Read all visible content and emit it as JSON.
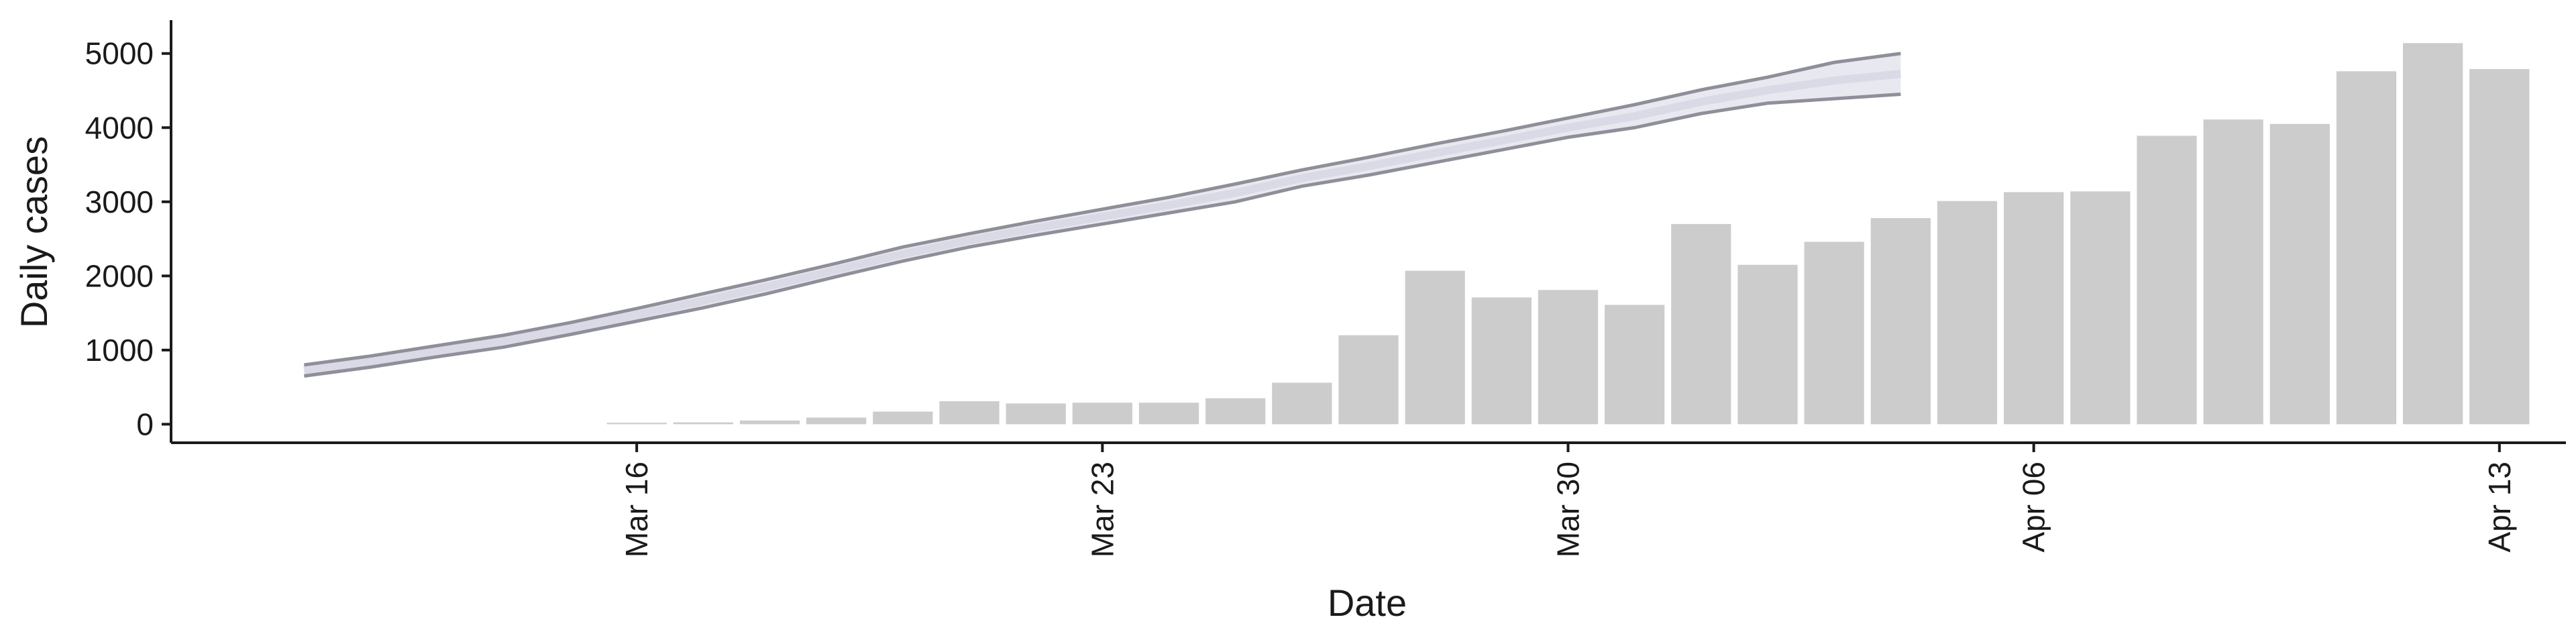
{
  "chart_data": {
    "type": "bar",
    "xlabel": "Date",
    "ylabel": "Daily cases",
    "ylim": [
      -250,
      5450
    ],
    "xlim": [
      "2020-03-09",
      "2020-04-14"
    ],
    "x_ticks": [
      {
        "date": "2020-03-16",
        "label": "Mar 16"
      },
      {
        "date": "2020-03-23",
        "label": "Mar 23"
      },
      {
        "date": "2020-03-30",
        "label": "Mar 30"
      },
      {
        "date": "2020-04-06",
        "label": "Apr 06"
      },
      {
        "date": "2020-04-13",
        "label": "Apr 13"
      }
    ],
    "y_ticks": [
      0,
      1000,
      2000,
      3000,
      4000,
      5000
    ],
    "grid": false,
    "legend": "none",
    "bars": {
      "color": "#cccccc",
      "dates": [
        "2020-03-16",
        "2020-03-17",
        "2020-03-18",
        "2020-03-19",
        "2020-03-20",
        "2020-03-21",
        "2020-03-22",
        "2020-03-23",
        "2020-03-24",
        "2020-03-25",
        "2020-03-26",
        "2020-03-27",
        "2020-03-28",
        "2020-03-29",
        "2020-03-30",
        "2020-03-31",
        "2020-04-01",
        "2020-04-02",
        "2020-04-03",
        "2020-04-04",
        "2020-04-05",
        "2020-04-06",
        "2020-04-07",
        "2020-04-08",
        "2020-04-09",
        "2020-04-10",
        "2020-04-11",
        "2020-04-12",
        "2020-04-13"
      ],
      "values": [
        20,
        25,
        50,
        90,
        170,
        310,
        280,
        290,
        290,
        350,
        560,
        1200,
        2070,
        1710,
        1810,
        1610,
        2700,
        2150,
        2460,
        2780,
        3010,
        3130,
        3140,
        3890,
        4110,
        4050,
        4760,
        5140,
        4790
      ]
    },
    "forecast_band": {
      "line_color": "#8f8f99",
      "fill_color": "#e8e8f0",
      "dates": [
        "2020-03-11",
        "2020-03-12",
        "2020-03-13",
        "2020-03-14",
        "2020-03-15",
        "2020-03-16",
        "2020-03-17",
        "2020-03-18",
        "2020-03-19",
        "2020-03-20",
        "2020-03-21",
        "2020-03-22",
        "2020-03-23",
        "2020-03-24",
        "2020-03-25",
        "2020-03-26",
        "2020-03-27",
        "2020-03-28",
        "2020-03-29",
        "2020-03-30",
        "2020-03-31",
        "2020-04-01",
        "2020-04-02",
        "2020-04-03",
        "2020-04-04"
      ],
      "upper": [
        800,
        920,
        1060,
        1200,
        1370,
        1560,
        1760,
        1960,
        2170,
        2390,
        2570,
        2740,
        2900,
        3060,
        3240,
        3430,
        3600,
        3780,
        3950,
        4130,
        4310,
        4510,
        4680,
        4880,
        5000
      ],
      "lower": [
        650,
        770,
        910,
        1040,
        1210,
        1390,
        1570,
        1770,
        1990,
        2200,
        2390,
        2550,
        2700,
        2850,
        3000,
        3210,
        3360,
        3530,
        3700,
        3870,
        4000,
        4190,
        4330,
        4390,
        4450
      ]
    }
  }
}
